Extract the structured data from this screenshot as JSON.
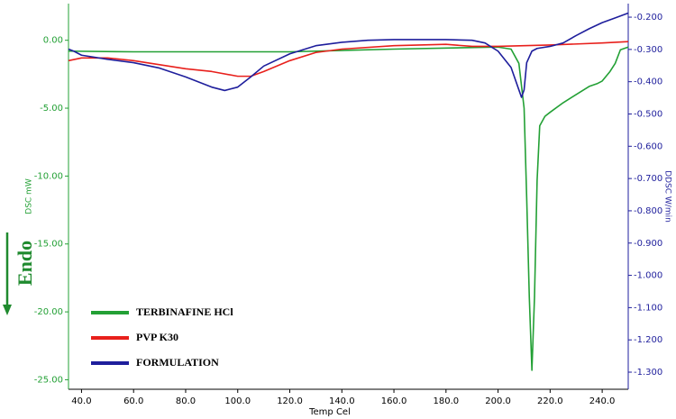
{
  "chart_data": {
    "type": "line",
    "x_label": "Temp Cel",
    "y_label": "DSC mW",
    "y2_label": "DDSC W/min",
    "annotation": "Endo",
    "xlim": [
      35,
      250
    ],
    "xticks": [
      {
        "value": 40,
        "label": "40.0"
      },
      {
        "value": 60,
        "label": "60.0"
      },
      {
        "value": 80,
        "label": "80.0"
      },
      {
        "value": 100,
        "label": "100.0"
      },
      {
        "value": 120,
        "label": "120.0"
      },
      {
        "value": 140,
        "label": "140.0"
      },
      {
        "value": 160,
        "label": "160.0"
      },
      {
        "value": 180,
        "label": "180.0"
      },
      {
        "value": 200,
        "label": "200.0"
      },
      {
        "value": 220,
        "label": "220.0"
      },
      {
        "value": 240,
        "label": "240.0"
      }
    ],
    "ylim": [
      -25.7,
      2.7
    ],
    "yticks": [
      {
        "value": 0,
        "label": "0.00"
      },
      {
        "value": -5,
        "label": "-5.00"
      },
      {
        "value": -10,
        "label": "-10.00"
      },
      {
        "value": -15,
        "label": "-15.00"
      },
      {
        "value": -20,
        "label": "-20.00"
      },
      {
        "value": -25,
        "label": "-25.00"
      }
    ],
    "y2lim": [
      -1.353,
      -0.158
    ],
    "y2ticks": [
      {
        "value": -0.2,
        "label": "-0.200"
      },
      {
        "value": -0.3,
        "label": "-0.300"
      },
      {
        "value": -0.4,
        "label": "-0.400"
      },
      {
        "value": -0.5,
        "label": "-0.500"
      },
      {
        "value": -0.6,
        "label": "-0.600"
      },
      {
        "value": -0.7,
        "label": "-0.700"
      },
      {
        "value": -0.8,
        "label": "-0.800"
      },
      {
        "value": -0.9,
        "label": "-0.900"
      },
      {
        "value": -1.0,
        "label": "-1.000"
      },
      {
        "value": -1.1,
        "label": "-1.100"
      },
      {
        "value": -1.2,
        "label": "-1.200"
      },
      {
        "value": -1.3,
        "label": "-1.300"
      }
    ],
    "legend": "lower left",
    "series": [
      {
        "name": "TERBINAFINE HCl",
        "color": "#23a035",
        "x": [
          35,
          60,
          90,
          120,
          160,
          200,
          205,
          208,
          210,
          211,
          212,
          213,
          214,
          215,
          216,
          218,
          220,
          225,
          230,
          235,
          238,
          240,
          243,
          245,
          247,
          250
        ],
        "values": [
          -0.8,
          -0.85,
          -0.85,
          -0.85,
          -0.65,
          -0.5,
          -0.65,
          -1.7,
          -5.0,
          -11.6,
          -18.9,
          -24.3,
          -18.9,
          -10.3,
          -6.3,
          -5.6,
          -5.3,
          -4.6,
          -4.0,
          -3.4,
          -3.2,
          -3.0,
          -2.3,
          -1.7,
          -0.7,
          -0.5
        ]
      },
      {
        "name": "PVP K30",
        "color": "#e8201c",
        "x": [
          35,
          40,
          50,
          60,
          70,
          80,
          90,
          100,
          105,
          110,
          120,
          130,
          140,
          160,
          180,
          190,
          200,
          220,
          240,
          250
        ],
        "values": [
          -1.5,
          -1.3,
          -1.3,
          -1.5,
          -1.8,
          -2.1,
          -2.3,
          -2.65,
          -2.65,
          -2.3,
          -1.5,
          -0.9,
          -0.65,
          -0.4,
          -0.3,
          -0.45,
          -0.45,
          -0.35,
          -0.2,
          -0.1
        ]
      },
      {
        "name": "FORMULATION",
        "color": "#1e1e9c",
        "x": [
          35,
          37,
          40,
          50,
          60,
          70,
          80,
          90,
          95,
          100,
          105,
          110,
          120,
          130,
          140,
          150,
          160,
          170,
          180,
          190,
          195,
          200,
          205,
          208,
          209,
          210,
          211,
          213,
          215,
          220,
          225,
          230,
          235,
          240,
          245,
          250
        ],
        "values": [
          -0.65,
          -0.8,
          -1.1,
          -1.4,
          -1.65,
          -2.05,
          -2.7,
          -3.45,
          -3.7,
          -3.45,
          -2.7,
          -1.9,
          -1.0,
          -0.4,
          -0.15,
          0,
          0.05,
          0.05,
          0.05,
          0,
          -0.2,
          -0.8,
          -2.0,
          -3.65,
          -4.2,
          -3.65,
          -1.65,
          -0.8,
          -0.6,
          -0.45,
          -0.2,
          0.35,
          0.85,
          1.3,
          1.65,
          2.0
        ]
      }
    ]
  }
}
